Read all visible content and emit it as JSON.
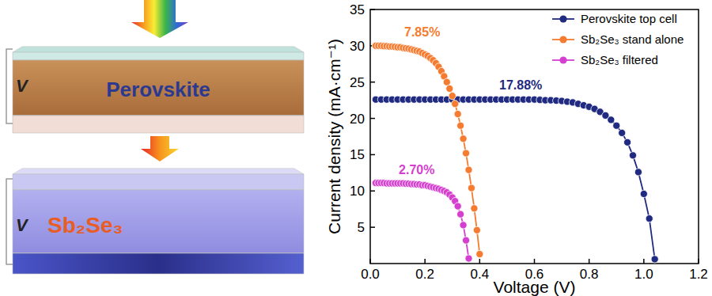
{
  "diagram": {
    "top_cell": {
      "label": "Perovskite",
      "voltage": "V"
    },
    "bottom_cell": {
      "label": "Sb₂Se₃",
      "voltage": "V"
    }
  },
  "chart_data": {
    "type": "line",
    "x_label": "Voltage (V)",
    "y_label": "Current density (mA·cm⁻¹)",
    "xlim": [
      0,
      1.2
    ],
    "xticks": [
      {
        "value": 0,
        "label": "0.0"
      },
      0.2,
      0.4,
      0.6,
      0.8,
      {
        "value": 1,
        "label": "1.0"
      },
      1.2
    ],
    "ylim": [
      0,
      35
    ],
    "yticks": [
      5,
      10,
      15,
      20,
      25,
      30,
      35
    ],
    "grid": false,
    "legend": "upper right",
    "series": [
      {
        "name": "Perovskite top cell",
        "color": "#1f2a80",
        "marker": "circle",
        "line_style": "solid",
        "x": [
          0.02,
          0.04,
          0.06,
          0.08,
          0.1,
          0.12,
          0.14,
          0.16,
          0.18,
          0.2,
          0.22,
          0.24,
          0.26,
          0.28,
          0.3,
          0.32,
          0.34,
          0.36,
          0.38,
          0.4,
          0.42,
          0.44,
          0.46,
          0.48,
          0.5,
          0.52,
          0.54,
          0.56,
          0.58,
          0.6,
          0.62,
          0.64,
          0.66,
          0.68,
          0.7,
          0.72,
          0.74,
          0.76,
          0.78,
          0.8,
          0.82,
          0.84,
          0.86,
          0.88,
          0.9,
          0.92,
          0.94,
          0.96,
          0.98,
          1.0,
          1.02,
          1.04
        ],
        "values": [
          22.6,
          22.6,
          22.6,
          22.6,
          22.6,
          22.6,
          22.6,
          22.6,
          22.6,
          22.6,
          22.6,
          22.6,
          22.6,
          22.6,
          22.6,
          22.6,
          22.6,
          22.6,
          22.6,
          22.6,
          22.6,
          22.6,
          22.6,
          22.6,
          22.6,
          22.6,
          22.6,
          22.6,
          22.6,
          22.6,
          22.55,
          22.5,
          22.5,
          22.45,
          22.4,
          22.3,
          22.2,
          22.0,
          21.8,
          21.6,
          21.3,
          20.9,
          20.4,
          19.8,
          19.0,
          18.0,
          16.7,
          14.9,
          12.6,
          9.6,
          6.2,
          0.6
        ]
      },
      {
        "name": "Sb₂Se₃ stand alone",
        "color": "#f47b2f",
        "marker": "circle",
        "line_style": "solid",
        "x": [
          0.02,
          0.03,
          0.04,
          0.05,
          0.06,
          0.07,
          0.08,
          0.09,
          0.1,
          0.11,
          0.12,
          0.13,
          0.14,
          0.15,
          0.16,
          0.17,
          0.18,
          0.19,
          0.2,
          0.21,
          0.22,
          0.23,
          0.24,
          0.25,
          0.26,
          0.27,
          0.28,
          0.29,
          0.3,
          0.31,
          0.32,
          0.33,
          0.34,
          0.35,
          0.36,
          0.37,
          0.38,
          0.39,
          0.4
        ],
        "values": [
          30.0,
          30.0,
          30.0,
          29.95,
          29.95,
          29.9,
          29.9,
          29.85,
          29.8,
          29.8,
          29.7,
          29.65,
          29.6,
          29.5,
          29.4,
          29.3,
          29.2,
          29.0,
          28.8,
          28.6,
          28.3,
          28.0,
          27.6,
          27.1,
          26.5,
          25.8,
          25.0,
          24.1,
          23.1,
          22.0,
          20.6,
          19.0,
          17.2,
          15.2,
          12.9,
          10.4,
          7.6,
          4.6,
          1.3
        ]
      },
      {
        "name": "Sb₂Se₃ filtered",
        "color": "#d43fcf",
        "marker": "circle",
        "line_style": "solid",
        "x": [
          0.02,
          0.03,
          0.04,
          0.05,
          0.06,
          0.07,
          0.08,
          0.09,
          0.1,
          0.11,
          0.12,
          0.13,
          0.14,
          0.15,
          0.16,
          0.17,
          0.18,
          0.19,
          0.2,
          0.21,
          0.22,
          0.23,
          0.24,
          0.25,
          0.26,
          0.27,
          0.28,
          0.29,
          0.3,
          0.31,
          0.32,
          0.33,
          0.34,
          0.35,
          0.36
        ],
        "values": [
          11.1,
          11.1,
          11.1,
          11.1,
          11.05,
          11.05,
          11.05,
          11.05,
          11.05,
          11.05,
          11.05,
          11.0,
          11.0,
          10.95,
          10.95,
          10.9,
          10.9,
          10.8,
          10.8,
          10.7,
          10.6,
          10.5,
          10.4,
          10.3,
          10.15,
          10.0,
          9.8,
          9.5,
          9.1,
          8.6,
          7.9,
          6.8,
          5.3,
          3.2,
          0.7
        ]
      }
    ],
    "annotations": [
      {
        "text": "7.85%",
        "x": 0.19,
        "y": 31.3,
        "color": "#f47b2f"
      },
      {
        "text": "17.88%",
        "x": 0.55,
        "y": 24.0,
        "color": "#1f2a80"
      },
      {
        "text": "2.70%",
        "x": 0.17,
        "y": 12.3,
        "color": "#d43fcf"
      }
    ]
  }
}
